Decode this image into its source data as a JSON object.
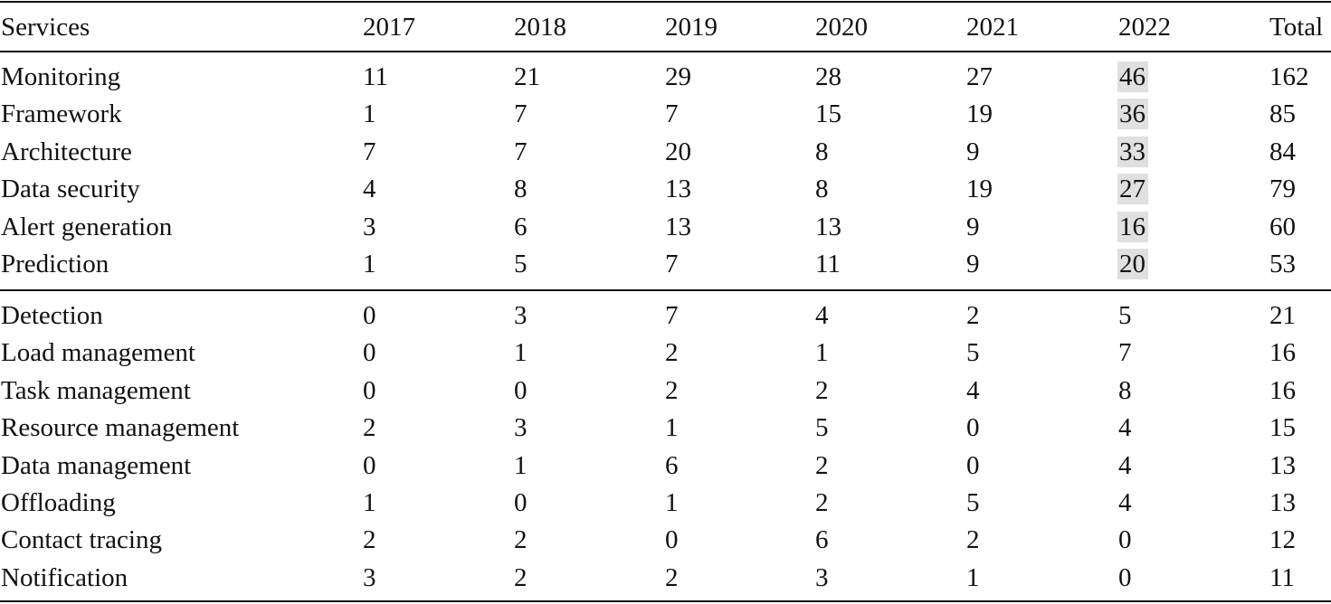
{
  "table": {
    "headers": [
      "Services",
      "2017",
      "2018",
      "2019",
      "2020",
      "2021",
      "2022",
      "Total"
    ],
    "highlight_column": 5,
    "highlight_color": "#e0e0e0",
    "group1": [
      {
        "service": "Monitoring",
        "values": [
          "11",
          "21",
          "29",
          "28",
          "27",
          "46",
          "162"
        ]
      },
      {
        "service": "Framework",
        "values": [
          "1",
          "7",
          "7",
          "15",
          "19",
          "36",
          "85"
        ]
      },
      {
        "service": "Architecture",
        "values": [
          "7",
          "7",
          "20",
          "8",
          "9",
          "33",
          "84"
        ]
      },
      {
        "service": "Data security",
        "values": [
          "4",
          "8",
          "13",
          "8",
          "19",
          "27",
          "79"
        ]
      },
      {
        "service": "Alert generation",
        "values": [
          "3",
          "6",
          "13",
          "13",
          "9",
          "16",
          "60"
        ]
      },
      {
        "service": "Prediction",
        "values": [
          "1",
          "5",
          "7",
          "11",
          "9",
          "20",
          "53"
        ]
      }
    ],
    "group2": [
      {
        "service": "Detection",
        "values": [
          "0",
          "3",
          "7",
          "4",
          "2",
          "5",
          "21"
        ]
      },
      {
        "service": "Load management",
        "values": [
          "0",
          "1",
          "2",
          "1",
          "5",
          "7",
          "16"
        ]
      },
      {
        "service": "Task management",
        "values": [
          "0",
          "0",
          "2",
          "2",
          "4",
          "8",
          "16"
        ]
      },
      {
        "service": "Resource management",
        "values": [
          "2",
          "3",
          "1",
          "5",
          "0",
          "4",
          "15"
        ]
      },
      {
        "service": "Data management",
        "values": [
          "0",
          "1",
          "6",
          "2",
          "0",
          "4",
          "13"
        ]
      },
      {
        "service": "Offloading",
        "values": [
          "1",
          "0",
          "1",
          "2",
          "5",
          "4",
          "13"
        ]
      },
      {
        "service": "Contact tracing",
        "values": [
          "2",
          "2",
          "0",
          "6",
          "2",
          "0",
          "12"
        ]
      },
      {
        "service": "Notification",
        "values": [
          "3",
          "2",
          "2",
          "3",
          "1",
          "0",
          "11"
        ]
      }
    ]
  }
}
